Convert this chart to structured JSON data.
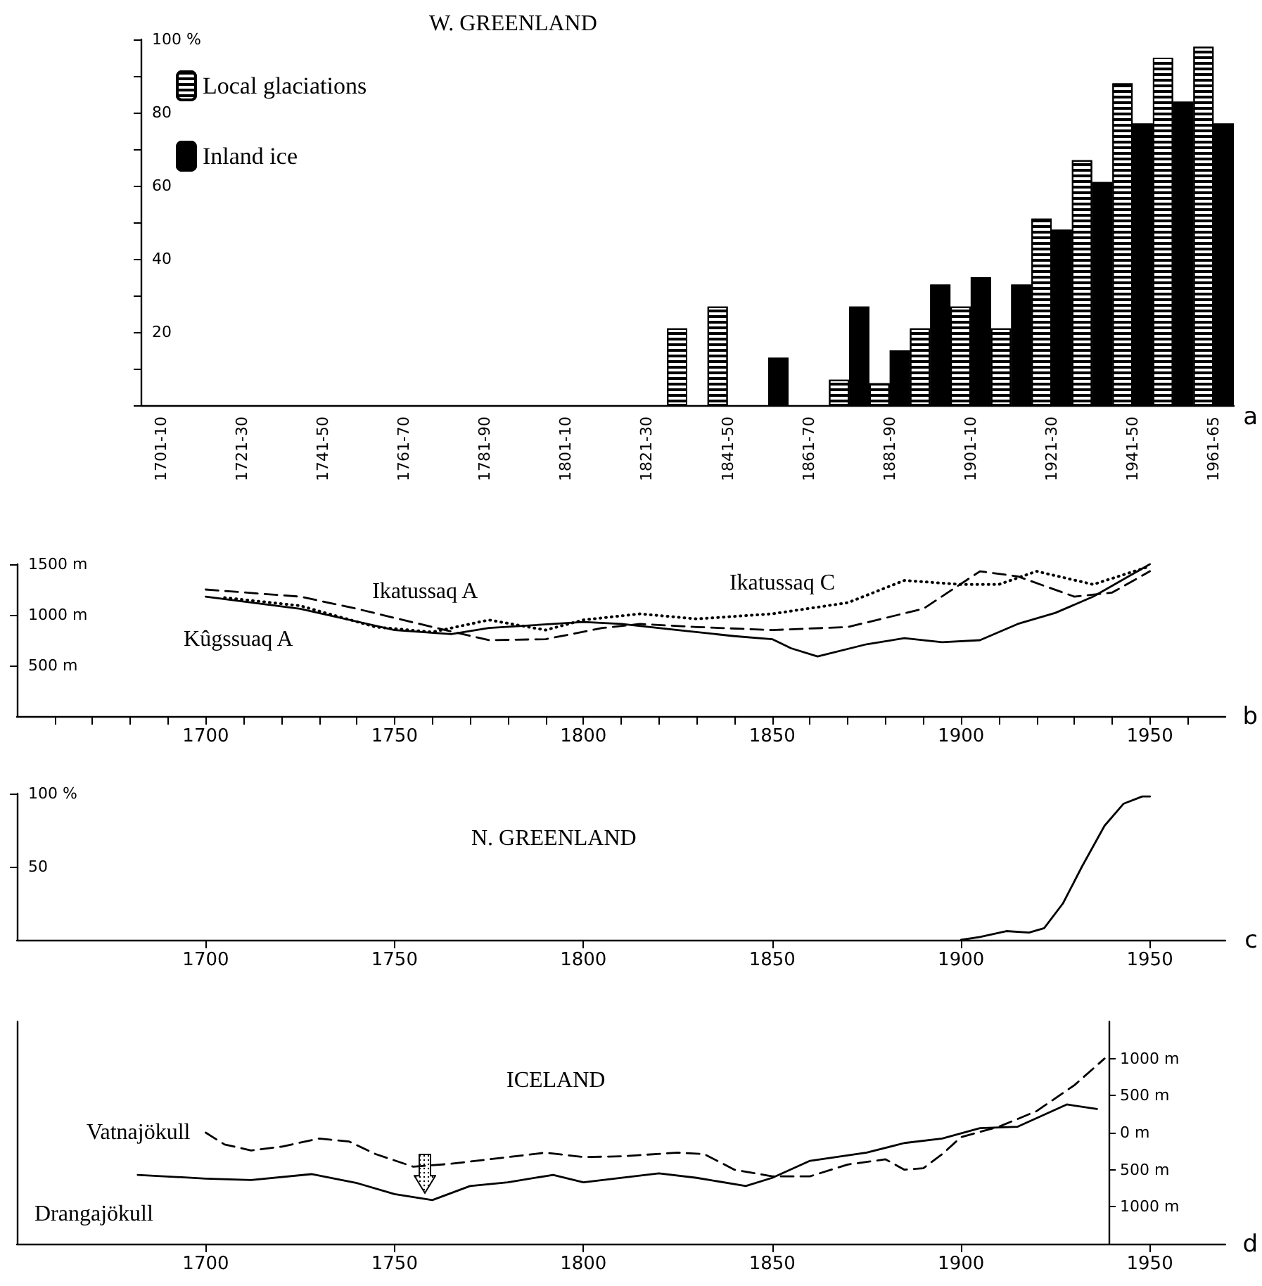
{
  "chart_data": [
    {
      "type": "bar",
      "title": "W. GREENLAND",
      "categories": [
        "1701-10",
        null,
        "1721-30",
        null,
        "1741-50",
        null,
        "1761-70",
        null,
        "1781-90",
        null,
        "1801-10",
        null,
        "1821-30",
        null,
        "1841-50",
        null,
        "1861-70",
        null,
        "1881-90",
        null,
        "1901-10",
        null,
        "1921-30",
        null,
        "1941-50",
        null,
        "1961-65"
      ],
      "series": [
        {
          "name": "Local glaciations",
          "color": "#ffffff",
          "values": [
            0,
            0,
            0,
            0,
            0,
            0,
            0,
            0,
            0,
            0,
            0,
            0,
            0,
            21,
            27,
            0,
            0,
            7,
            6,
            21,
            27,
            21,
            51,
            67,
            88,
            95,
            98
          ]
        },
        {
          "name": "Inland ice",
          "color": "#000000",
          "values": [
            0,
            0,
            0,
            0,
            0,
            0,
            0,
            0,
            0,
            0,
            0,
            0,
            0,
            0,
            0,
            13,
            0,
            27,
            15,
            33,
            35,
            33,
            48,
            61,
            77,
            83,
            77
          ]
        }
      ],
      "ylim": [
        0,
        100
      ],
      "yticks": [
        {
          "value": 0,
          "label": null
        },
        {
          "value": 10,
          "label": null
        },
        20,
        {
          "value": 30,
          "label": null
        },
        40,
        {
          "value": 50,
          "label": null
        },
        60,
        {
          "value": 70,
          "label": null
        },
        80,
        {
          "value": 90,
          "label": null
        },
        {
          "value": 100,
          "label": "100 %"
        }
      ],
      "legend": "top left",
      "annotations": [
        "a"
      ]
    },
    {
      "type": "line",
      "marker": "none",
      "series": [
        {
          "name": "Kûgssuaq A",
          "color": "#000000",
          "line_style": "solid",
          "x": [
            1700,
            1725,
            1750,
            1765,
            1775,
            1800,
            1810,
            1825,
            1840,
            1850,
            1855,
            1862,
            1875,
            1885,
            1895,
            1905,
            1915,
            1925,
            1935,
            1950
          ],
          "values": [
            1180,
            1060,
            850,
            810,
            870,
            930,
            910,
            850,
            790,
            760,
            670,
            590,
            710,
            770,
            730,
            750,
            910,
            1020,
            1180,
            1500
          ]
        },
        {
          "name": "Ikatussaq A",
          "color": "#000000",
          "line_style": "dashed",
          "x": [
            1700,
            1725,
            1740,
            1760,
            1775,
            1790,
            1805,
            1815,
            1830,
            1850,
            1870,
            1890,
            1905,
            1915,
            1930,
            1940,
            1950
          ],
          "values": [
            1250,
            1180,
            1060,
            880,
            750,
            760,
            870,
            910,
            880,
            850,
            880,
            1060,
            1430,
            1380,
            1180,
            1220,
            1430
          ]
        },
        {
          "name": "Ikatussaq C",
          "color": "#000000",
          "line_style": "dotted",
          "x": [
            1705,
            1725,
            1745,
            1760,
            1775,
            1790,
            1800,
            1815,
            1830,
            1850,
            1870,
            1885,
            1900,
            1910,
            1920,
            1935,
            1950
          ],
          "values": [
            1170,
            1090,
            880,
            830,
            950,
            850,
            950,
            1010,
            960,
            1010,
            1120,
            1340,
            1300,
            1300,
            1430,
            1300,
            1480
          ]
        }
      ],
      "xlim": [
        1650,
        1970
      ],
      "xticks": [
        {
          "value": 1660,
          "label": null
        },
        {
          "value": 1670,
          "label": null
        },
        {
          "value": 1680,
          "label": null
        },
        {
          "value": 1690,
          "label": null
        },
        1700,
        {
          "value": 1710,
          "label": null
        },
        {
          "value": 1720,
          "label": null
        },
        {
          "value": 1730,
          "label": null
        },
        {
          "value": 1740,
          "label": null
        },
        1750,
        {
          "value": 1760,
          "label": null
        },
        {
          "value": 1770,
          "label": null
        },
        {
          "value": 1780,
          "label": null
        },
        {
          "value": 1790,
          "label": null
        },
        1800,
        {
          "value": 1810,
          "label": null
        },
        {
          "value": 1820,
          "label": null
        },
        {
          "value": 1830,
          "label": null
        },
        {
          "value": 1840,
          "label": null
        },
        1850,
        {
          "value": 1860,
          "label": null
        },
        {
          "value": 1870,
          "label": null
        },
        {
          "value": 1880,
          "label": null
        },
        {
          "value": 1890,
          "label": null
        },
        1900,
        {
          "value": 1910,
          "label": null
        },
        {
          "value": 1920,
          "label": null
        },
        {
          "value": 1930,
          "label": null
        },
        {
          "value": 1940,
          "label": null
        },
        1950,
        {
          "value": 1960,
          "label": null
        }
      ],
      "ylim": [
        0,
        1500
      ],
      "yticks": [
        {
          "value": 500,
          "label": "500 m"
        },
        {
          "value": 1000,
          "label": "1000 m"
        },
        {
          "value": 1500,
          "label": "1500 m"
        }
      ],
      "annotations": [
        "b"
      ]
    },
    {
      "type": "line",
      "marker": "none",
      "title": "N. GREENLAND",
      "series": [
        {
          "color": "#000000",
          "line_style": "solid",
          "x": [
            1900,
            1905,
            1912,
            1918,
            1922,
            1927,
            1932,
            1938,
            1943,
            1948,
            1950
          ],
          "values": [
            0,
            2,
            6,
            5,
            8,
            25,
            50,
            78,
            93,
            98,
            98
          ]
        }
      ],
      "xlim": [
        1650,
        1970
      ],
      "xticks": [
        1700,
        1750,
        1800,
        1850,
        1900,
        1950
      ],
      "ylim": [
        0,
        100
      ],
      "yticks": [
        {
          "value": 50,
          "label": "50"
        },
        {
          "value": 100,
          "label": "100 %"
        }
      ],
      "annotations": [
        "c"
      ]
    },
    {
      "type": "line",
      "marker": "none",
      "title": "ICELAND",
      "series": [
        {
          "name": "Vatnajökull",
          "color": "#000000",
          "line_style": "dashed",
          "axis": "y2",
          "x": [
            1700,
            1705,
            1712,
            1720,
            1730,
            1738,
            1745,
            1755,
            1765,
            1775,
            1790,
            1800,
            1810,
            1825,
            1832,
            1840,
            1850,
            1860,
            1870,
            1880,
            1885,
            1890,
            1895,
            1900,
            1910,
            1920,
            1930,
            1938
          ],
          "values": [
            0,
            -160,
            -240,
            -190,
            -80,
            -120,
            -290,
            -460,
            -420,
            -360,
            -270,
            -330,
            -320,
            -270,
            -290,
            -500,
            -590,
            -590,
            -430,
            -360,
            -500,
            -480,
            -290,
            -60,
            80,
            290,
            640,
            1000
          ]
        },
        {
          "name": "Drangajökull",
          "color": "#000000",
          "line_style": "solid",
          "axis": "y2",
          "x": [
            1682,
            1700,
            1712,
            1728,
            1740,
            1750,
            1760,
            1770,
            1780,
            1792,
            1800,
            1820,
            1830,
            1843,
            1850,
            1860,
            1875,
            1885,
            1895,
            1905,
            1915,
            1928,
            1936
          ],
          "values": [
            -570,
            -620,
            -640,
            -560,
            -680,
            -830,
            -910,
            -720,
            -670,
            -570,
            -670,
            -550,
            -610,
            -720,
            -610,
            -380,
            -270,
            -140,
            -80,
            60,
            80,
            380,
            320
          ]
        }
      ],
      "xlim": [
        1650,
        1970
      ],
      "xticks": [
        1700,
        1750,
        1800,
        1850,
        1900,
        1950
      ],
      "y2lim": [
        -1500,
        1500
      ],
      "y2ticks": [
        {
          "value": -1000,
          "label": "1000 m"
        },
        {
          "value": -500,
          "label": "500 m"
        },
        {
          "value": 0,
          "label": "0 m"
        },
        {
          "value": 500,
          "label": "500 m"
        },
        {
          "value": 1000,
          "label": "1000 m"
        }
      ],
      "annotations": [
        "d"
      ]
    }
  ]
}
